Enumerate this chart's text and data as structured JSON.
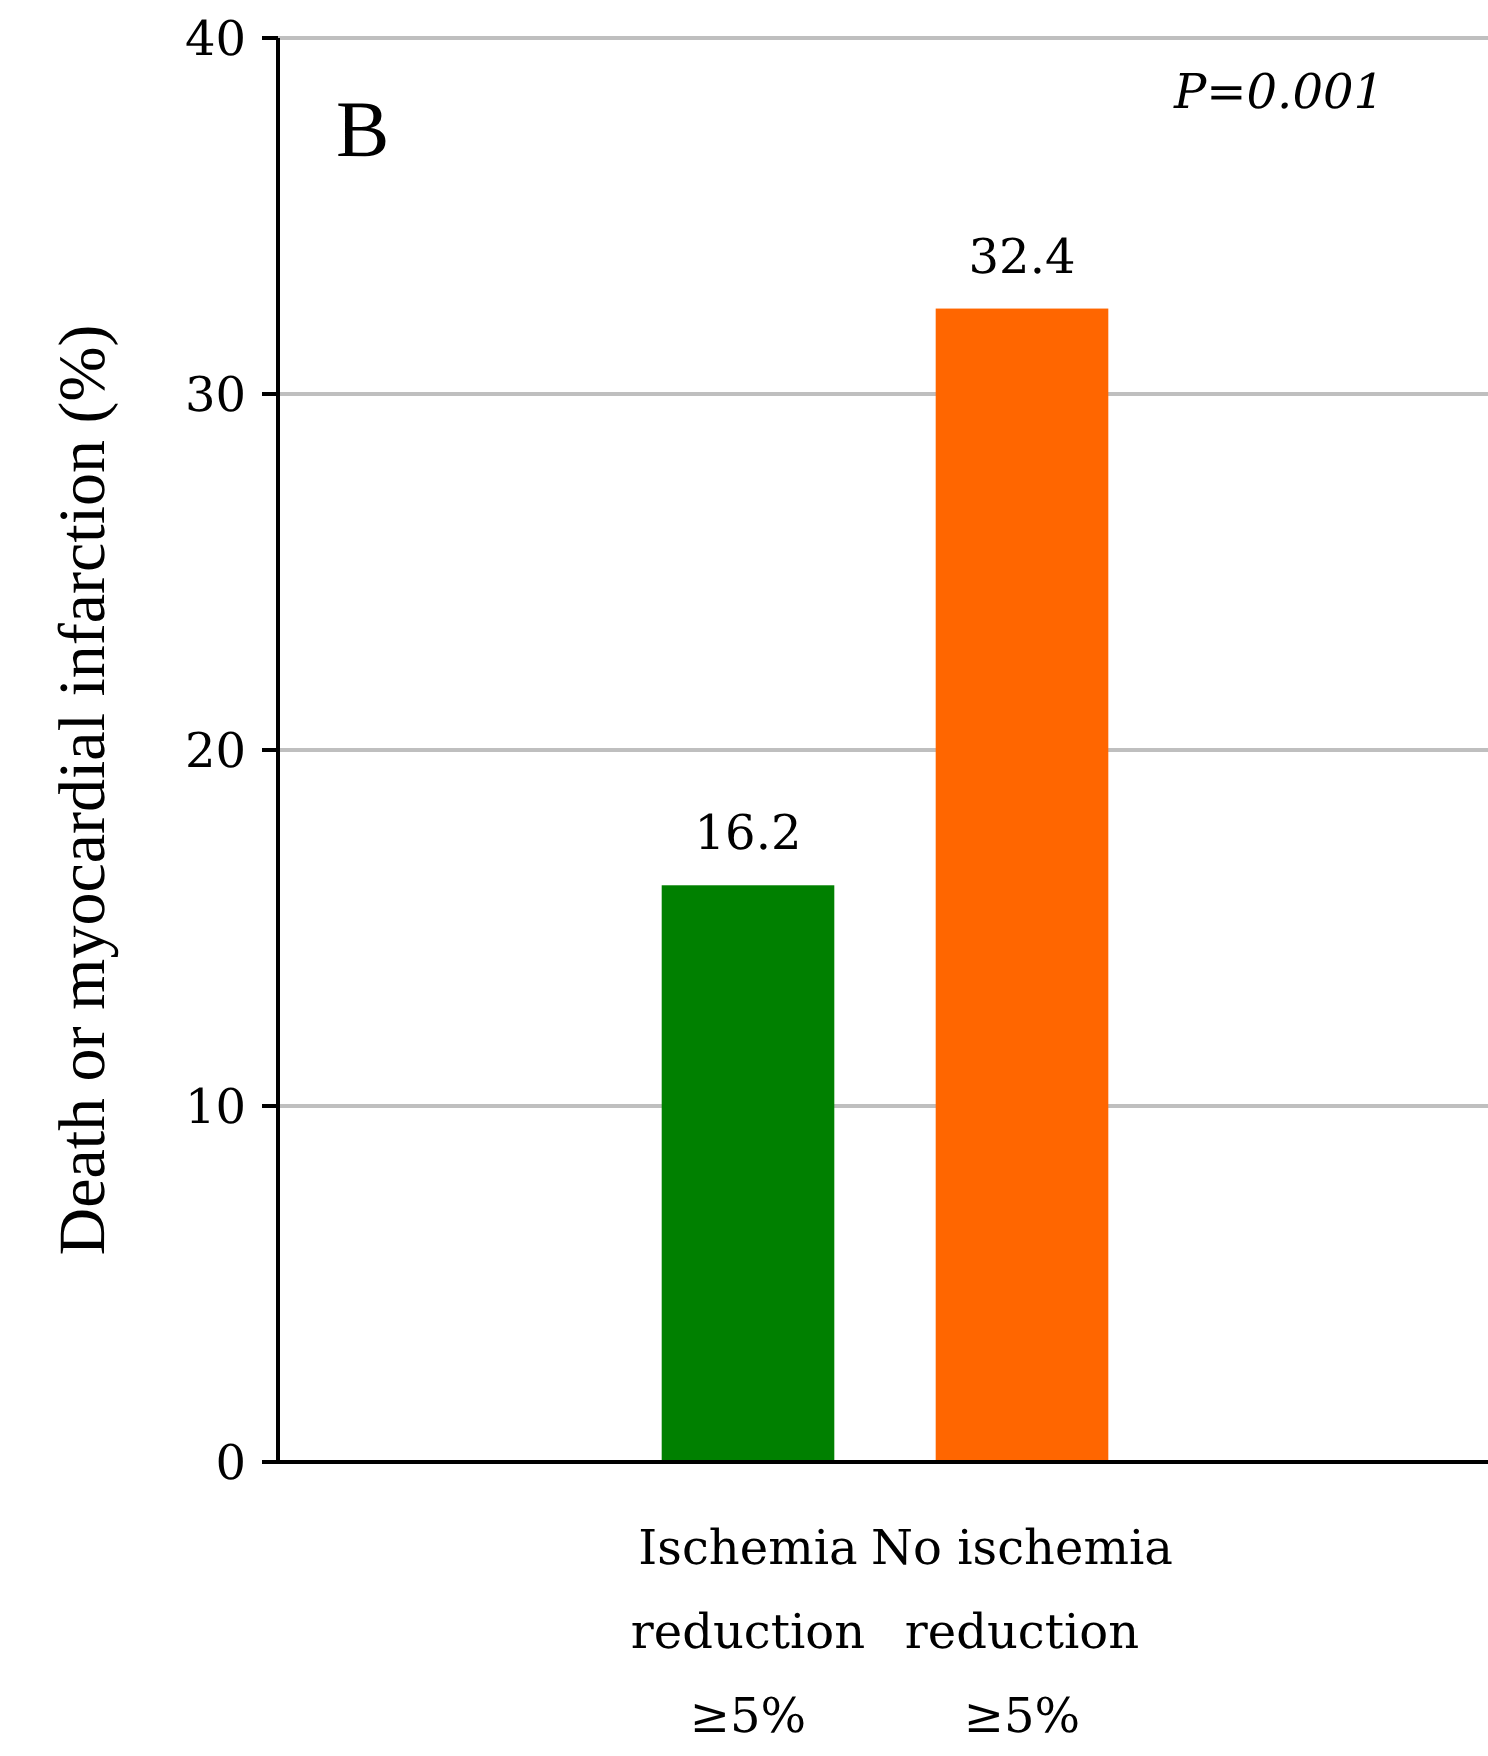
{
  "chart_data": {
    "type": "bar",
    "title": "B",
    "ylabel": "Death or myocardial infarction (%)",
    "categories": [
      "Ischemia reduction ≥5%",
      "No ischemia reduction ≥5%"
    ],
    "values": [
      16.2,
      32.4
    ],
    "colors": [
      "#008000",
      "#ff6600"
    ],
    "ylim": [
      0,
      40
    ],
    "yticks": [
      0,
      10,
      20,
      30,
      40
    ],
    "grid": "y",
    "data_labels": true,
    "annotations": [
      "P=0.001"
    ]
  }
}
